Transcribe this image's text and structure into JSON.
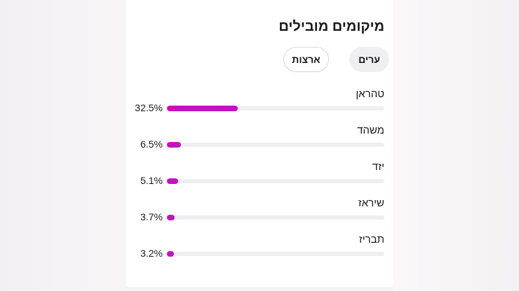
{
  "card": {
    "title": "מיקומים מובילים",
    "tabs": [
      {
        "label": "ערים",
        "selected": true
      },
      {
        "label": "ארצות",
        "selected": false
      }
    ],
    "accent_color": "#c512c1",
    "cities": [
      {
        "name": "טהראן",
        "percent_label": "32.5%",
        "percent": 32.5
      },
      {
        "name": "משהד",
        "percent_label": "6.5%",
        "percent": 6.5
      },
      {
        "name": "יזד",
        "percent_label": "5.1%",
        "percent": 5.1
      },
      {
        "name": "שיראז",
        "percent_label": "3.7%",
        "percent": 3.7
      },
      {
        "name": "תבריז",
        "percent_label": "3.2%",
        "percent": 3.2
      }
    ]
  }
}
